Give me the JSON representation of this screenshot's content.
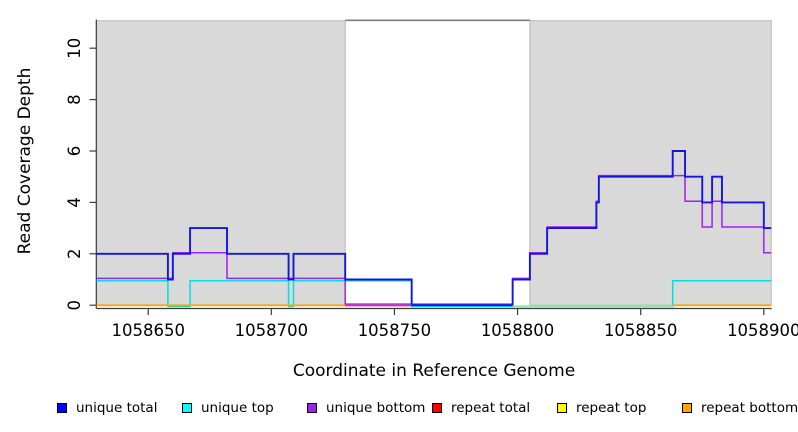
{
  "chart_data": {
    "type": "step-line",
    "title": "",
    "xlabel": "Coordinate in Reference Genome",
    "ylabel": "Read Coverage Depth",
    "x_range": [
      1058629,
      1058903
    ],
    "x_ticks": [
      1058650,
      1058700,
      1058750,
      1058800,
      1058850,
      1058900
    ],
    "y_ticks": [
      0,
      2,
      4,
      6,
      8,
      10
    ],
    "y_max": 11.1,
    "grid": "off",
    "background_shading": {
      "fill": "#d9d9d9",
      "border": "#a8a8a8",
      "regions": [
        [
          1058629,
          1058730
        ],
        [
          1058805,
          1058903
        ]
      ],
      "gap": [
        1058730,
        1058805
      ],
      "gap_top_border": "#7d7d7d"
    },
    "axis_color": "#3c3c3c",
    "series": [
      {
        "name": "unique top",
        "color": "#00e0e0",
        "line_width": 1.5,
        "y_offset": 1.3,
        "segments": [
          [
            [
              1058629,
              1
            ],
            [
              1058658,
              0
            ],
            [
              1058667,
              1
            ],
            [
              1058707,
              0
            ],
            [
              1058709,
              1
            ],
            [
              1058757,
              0
            ],
            [
              1058863,
              1
            ],
            [
              1058903,
              1
            ]
          ]
        ]
      },
      {
        "name": "unique bottom",
        "color": "#a020f0",
        "line_width": 1.5,
        "y_offset": -1.1,
        "segments": [
          [
            [
              1058629,
              1
            ],
            [
              1058660,
              2
            ],
            [
              1058682,
              1
            ],
            [
              1058730,
              0
            ],
            [
              1058798,
              1
            ],
            [
              1058805,
              2
            ],
            [
              1058812,
              3
            ],
            [
              1058832,
              4
            ],
            [
              1058833,
              5
            ],
            [
              1058868,
              4
            ],
            [
              1058875,
              3
            ],
            [
              1058879,
              4
            ],
            [
              1058883,
              3
            ],
            [
              1058900,
              2
            ],
            [
              1058903,
              2
            ]
          ]
        ]
      },
      {
        "name": "unique total",
        "color": "#1515e0",
        "line_width": 1.9,
        "y_offset": 0,
        "segments": [
          [
            [
              1058629,
              2
            ],
            [
              1058658,
              1
            ],
            [
              1058660,
              2
            ],
            [
              1058667,
              3
            ],
            [
              1058682,
              2
            ],
            [
              1058707,
              1
            ],
            [
              1058709,
              2
            ],
            [
              1058730,
              1
            ],
            [
              1058757,
              0
            ],
            [
              1058798,
              1
            ],
            [
              1058805,
              2
            ],
            [
              1058812,
              3
            ],
            [
              1058832,
              4
            ],
            [
              1058833,
              5
            ],
            [
              1058863,
              6
            ],
            [
              1058868,
              5
            ],
            [
              1058875,
              4
            ],
            [
              1058879,
              5
            ],
            [
              1058883,
              4
            ],
            [
              1058900,
              3
            ],
            [
              1058903,
              3
            ]
          ]
        ]
      },
      {
        "name": "repeat total",
        "color": "#ee3355",
        "line_width": 1.5,
        "y_offset": 0.4,
        "segments": [
          [
            [
              1058730,
              0
            ],
            [
              1058757,
              0
            ]
          ]
        ]
      },
      {
        "name": "repeat top",
        "color": "#bfe48a",
        "line_width": 1.5,
        "y_offset": 0.8,
        "segments": [
          [
            [
              1058798,
              0
            ],
            [
              1058863,
              0
            ]
          ]
        ]
      },
      {
        "name": "repeat bottom",
        "color": "#ffa500",
        "line_width": 1.9,
        "y_offset": 0.1,
        "segments": [
          [
            [
              1058629,
              0
            ],
            [
              1058730,
              0
            ]
          ],
          [
            [
              1058863,
              0
            ],
            [
              1058903,
              0
            ]
          ]
        ]
      }
    ],
    "legend": {
      "position": "bottom",
      "items": [
        {
          "label": "unique total",
          "color": "#0000ff"
        },
        {
          "label": "unique top",
          "color": "#00ffff"
        },
        {
          "label": "unique bottom",
          "color": "#a020f0"
        },
        {
          "label": "repeat total",
          "color": "#ff0000"
        },
        {
          "label": "repeat top",
          "color": "#ffff00"
        },
        {
          "label": "repeat bottom",
          "color": "#ffa500"
        }
      ]
    }
  }
}
